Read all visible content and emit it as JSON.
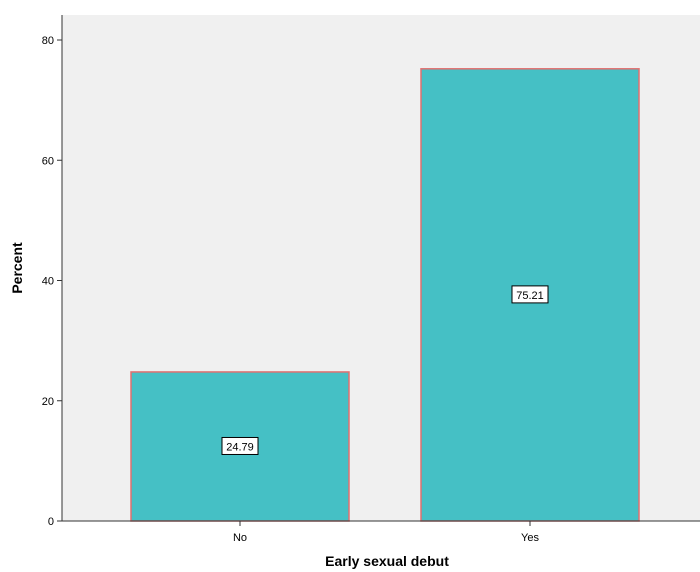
{
  "chart_data": {
    "type": "bar",
    "categories": [
      "No",
      "Yes"
    ],
    "values": [
      24.79,
      75.21
    ],
    "data_labels": [
      "24.79",
      "75.21"
    ],
    "title": "",
    "xlabel": "Early sexual debut",
    "ylabel": "Percent",
    "ylim": [
      0,
      80
    ],
    "yticks": [
      0,
      20,
      40,
      60,
      80
    ],
    "ytick_labels": [
      "0",
      "20",
      "40",
      "60",
      "80"
    ],
    "grid": false,
    "legend": "none"
  },
  "colors": {
    "plot_background": "#f0f0f0",
    "bar_fill": "#45c0c5",
    "bar_outline": "#e07070",
    "axis": "#333333"
  }
}
